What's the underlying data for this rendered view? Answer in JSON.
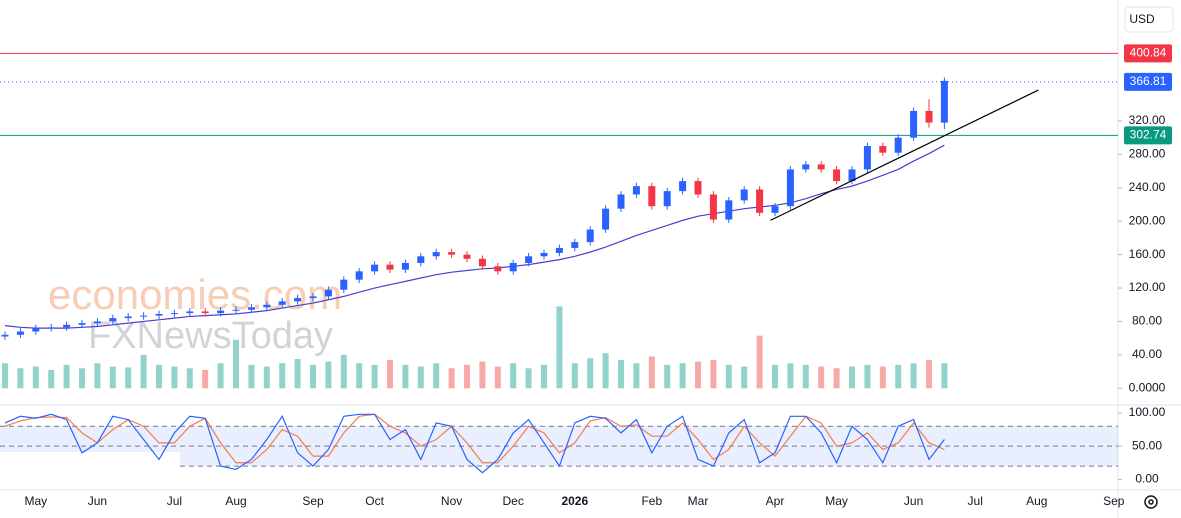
{
  "chart_data": {
    "type": "candlestick",
    "currency": "USD",
    "watermarks": [
      "economies.com",
      "FXNewsToday"
    ],
    "categories": [
      null,
      null,
      "May",
      null,
      null,
      null,
      "Jun",
      null,
      null,
      null,
      null,
      "Jul",
      null,
      null,
      null,
      "Aug",
      null,
      null,
      null,
      null,
      "Sep",
      null,
      null,
      null,
      "Oct",
      null,
      null,
      null,
      null,
      "Nov",
      null,
      null,
      null,
      "Dec",
      null,
      null,
      null,
      "2026",
      null,
      null,
      null,
      null,
      "Feb",
      null,
      null,
      "Mar",
      null,
      null,
      null,
      null,
      "Apr",
      null,
      null,
      null,
      "May",
      null,
      null,
      null,
      null,
      "Jun",
      null,
      null,
      null,
      "Jul",
      null,
      null,
      null,
      "Aug",
      null,
      null,
      null,
      null,
      "Sep"
    ],
    "open": [
      62,
      64,
      68,
      72,
      73,
      76,
      78,
      80,
      84,
      86,
      87,
      89,
      90,
      92,
      90,
      93,
      94,
      97,
      100,
      104,
      108,
      110,
      118,
      130,
      140,
      148,
      142,
      150,
      158,
      163,
      160,
      155,
      146,
      140,
      150,
      158,
      162,
      168,
      175,
      190,
      215,
      232,
      242,
      218,
      236,
      248,
      232,
      202,
      225,
      238,
      210,
      218,
      262,
      268,
      262,
      248,
      262,
      290,
      282,
      300,
      332,
      318,
      null,
      null,
      null,
      null,
      null,
      null,
      null,
      null,
      null,
      null,
      null
    ],
    "high": [
      68,
      72,
      76,
      77,
      80,
      82,
      84,
      88,
      90,
      91,
      93,
      94,
      96,
      96,
      97,
      98,
      101,
      104,
      108,
      112,
      114,
      122,
      134,
      144,
      152,
      152,
      154,
      162,
      167,
      167,
      164,
      159,
      150,
      154,
      162,
      166,
      172,
      179,
      194,
      219,
      236,
      246,
      246,
      240,
      252,
      252,
      236,
      229,
      242,
      242,
      222,
      266,
      272,
      272,
      266,
      266,
      294,
      294,
      304,
      336,
      346,
      372,
      null,
      null,
      null,
      null,
      null,
      null,
      null,
      null,
      null,
      null,
      null
    ],
    "low": [
      58,
      60,
      64,
      68,
      69,
      72,
      74,
      76,
      80,
      82,
      83,
      85,
      86,
      86,
      86,
      89,
      90,
      93,
      96,
      100,
      104,
      106,
      114,
      126,
      136,
      138,
      138,
      146,
      154,
      156,
      151,
      142,
      136,
      136,
      146,
      154,
      158,
      164,
      171,
      186,
      211,
      228,
      214,
      214,
      232,
      228,
      198,
      198,
      221,
      206,
      206,
      214,
      258,
      258,
      244,
      244,
      258,
      278,
      278,
      296,
      312,
      310,
      null,
      null,
      null,
      null,
      null,
      null,
      null,
      null,
      null,
      null,
      null
    ],
    "close": [
      64,
      68,
      72,
      73,
      76,
      78,
      80,
      84,
      86,
      87,
      89,
      90,
      92,
      90,
      93,
      94,
      97,
      100,
      104,
      108,
      110,
      118,
      130,
      140,
      148,
      142,
      150,
      158,
      163,
      160,
      155,
      146,
      140,
      150,
      158,
      162,
      168,
      175,
      190,
      215,
      232,
      242,
      218,
      236,
      248,
      232,
      202,
      225,
      238,
      210,
      218,
      262,
      268,
      262,
      248,
      262,
      290,
      282,
      300,
      332,
      318,
      368,
      null,
      null,
      null,
      null,
      null,
      null,
      null,
      null,
      null,
      null,
      null
    ],
    "volume": [
      30,
      24,
      26,
      22,
      28,
      24,
      30,
      26,
      25,
      40,
      28,
      26,
      24,
      22,
      30,
      58,
      28,
      26,
      30,
      35,
      28,
      32,
      40,
      30,
      28,
      34,
      28,
      26,
      30,
      24,
      28,
      32,
      26,
      30,
      24,
      28,
      98,
      30,
      36,
      42,
      34,
      30,
      38,
      28,
      30,
      32,
      34,
      28,
      26,
      63,
      28,
      30,
      28,
      26,
      24,
      26,
      28,
      26,
      28,
      30,
      34,
      30,
      null,
      null,
      null,
      null,
      null,
      null,
      null,
      null,
      null,
      null,
      null
    ],
    "ma": [
      75,
      73,
      72,
      72,
      72,
      73,
      74,
      76,
      78,
      80,
      82,
      84,
      86,
      87,
      88,
      89,
      91,
      93,
      96,
      99,
      102,
      106,
      110,
      115,
      120,
      124,
      128,
      132,
      136,
      139,
      141,
      143,
      144,
      146,
      148,
      151,
      154,
      158,
      163,
      169,
      176,
      183,
      189,
      195,
      201,
      206,
      209,
      212,
      215,
      217,
      219,
      222,
      227,
      233,
      238,
      242,
      248,
      255,
      262,
      272,
      281,
      291,
      null,
      null,
      null,
      null,
      null,
      null,
      null,
      null,
      null,
      null,
      null
    ],
    "stoch_k": [
      85,
      95,
      92,
      98,
      90,
      40,
      55,
      95,
      90,
      60,
      30,
      70,
      95,
      92,
      20,
      15,
      30,
      60,
      95,
      40,
      20,
      45,
      95,
      98,
      98,
      60,
      75,
      30,
      85,
      80,
      30,
      10,
      30,
      70,
      90,
      55,
      20,
      85,
      95,
      92,
      70,
      90,
      40,
      80,
      95,
      30,
      20,
      70,
      90,
      25,
      40,
      95,
      95,
      70,
      25,
      80,
      60,
      25,
      80,
      90,
      30,
      60,
      null,
      null,
      null,
      null,
      null,
      null,
      null,
      null,
      null,
      null,
      null
    ],
    "stoch_d": [
      80,
      88,
      93,
      94,
      93,
      70,
      55,
      75,
      90,
      80,
      55,
      55,
      80,
      92,
      55,
      25,
      25,
      45,
      75,
      65,
      35,
      35,
      70,
      95,
      98,
      80,
      70,
      50,
      60,
      80,
      55,
      25,
      25,
      50,
      80,
      70,
      40,
      55,
      88,
      93,
      80,
      82,
      65,
      65,
      85,
      60,
      30,
      45,
      80,
      55,
      35,
      65,
      95,
      85,
      50,
      55,
      70,
      45,
      55,
      85,
      55,
      45,
      null,
      null,
      null,
      null,
      null,
      null,
      null,
      null,
      null,
      null,
      null
    ],
    "up_color": "#2962ff",
    "down_color": "#f23645",
    "ma_color": "#4c3fcf",
    "k_color": "#2962ff",
    "d_color": "#f57c4a",
    "ylim": [
      -20,
      460
    ],
    "yticks": [
      {
        "value": 0,
        "label": "0.0000"
      },
      {
        "value": 40,
        "label": "40.00"
      },
      {
        "value": 80,
        "label": "80.00"
      },
      {
        "value": 120,
        "label": "120.00"
      },
      {
        "value": 160,
        "label": "160.00"
      },
      {
        "value": 200,
        "label": "200.00"
      },
      {
        "value": 240,
        "label": "240.00"
      },
      {
        "value": 280,
        "label": "280.00"
      },
      {
        "value": 320,
        "label": "320.00"
      }
    ],
    "levels": [
      {
        "value": 400.84,
        "color": "#f23645",
        "style": "solid"
      },
      {
        "value": 366.81,
        "color": "#2962ff",
        "style": "dotted"
      },
      {
        "value": 302.74,
        "color": "#089981",
        "style": "solid"
      }
    ],
    "trendline": {
      "start": 201,
      "end": 357
    },
    "stoch_ylim": [
      -16,
      112
    ],
    "stoch_yticks": [
      {
        "value": 100,
        "label": "100.00"
      },
      {
        "value": 50,
        "label": "50.00"
      },
      {
        "value": 0,
        "label": "0.00"
      }
    ],
    "stoch_levels": [
      80,
      50,
      20
    ]
  }
}
